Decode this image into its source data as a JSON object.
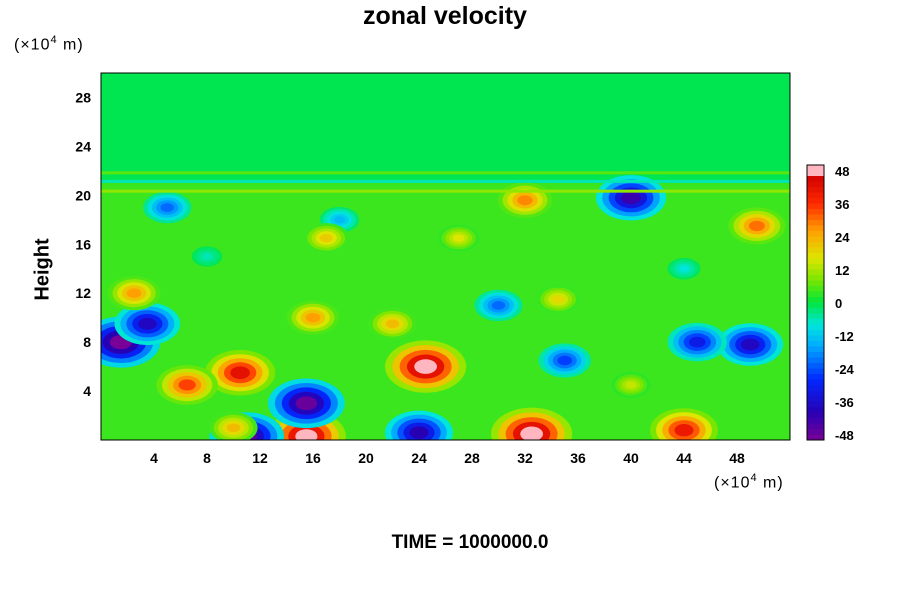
{
  "chart_data": {
    "type": "heatmap",
    "title": "zonal velocity",
    "xlabel": "",
    "ylabel": "Height",
    "x_unit": "(×10⁴ m)",
    "y_unit": "(×10⁴ m)",
    "footer": "TIME = 1000000.0",
    "xlim": [
      0,
      52
    ],
    "ylim": [
      0,
      30
    ],
    "x_ticks": [
      "4",
      "8",
      "12",
      "16",
      "20",
      "24",
      "28",
      "32",
      "36",
      "40",
      "44",
      "48"
    ],
    "y_ticks": [
      "4",
      "8",
      "12",
      "16",
      "20",
      "24",
      "28"
    ],
    "colorbar": {
      "min": -50,
      "max": 50,
      "labels": [
        "48",
        "36",
        "24",
        "12",
        "0",
        "-12",
        "-24",
        "-36",
        "-48"
      ]
    },
    "features": [
      {
        "x": 24.5,
        "y": 6.0,
        "value": 52
      },
      {
        "x": 10.5,
        "y": 5.5,
        "value": 42
      },
      {
        "x": 6.5,
        "y": 4.5,
        "value": 34
      },
      {
        "x": 32.5,
        "y": 0.5,
        "value": 52
      },
      {
        "x": 15.5,
        "y": 0.3,
        "value": 50
      },
      {
        "x": 44.0,
        "y": 0.8,
        "value": 40
      },
      {
        "x": 1.5,
        "y": 8.0,
        "value": -50
      },
      {
        "x": 3.5,
        "y": 9.5,
        "value": -38
      },
      {
        "x": 15.5,
        "y": 3.0,
        "value": -48
      },
      {
        "x": 11.0,
        "y": 0.3,
        "value": -46
      },
      {
        "x": 24.0,
        "y": 0.6,
        "value": -40
      },
      {
        "x": 40.0,
        "y": 19.8,
        "value": -42
      },
      {
        "x": 49.0,
        "y": 7.8,
        "value": -38
      },
      {
        "x": 45.0,
        "y": 8.0,
        "value": -32
      },
      {
        "x": 35.0,
        "y": 6.5,
        "value": -26
      },
      {
        "x": 30.0,
        "y": 11.0,
        "value": -22
      },
      {
        "x": 5.0,
        "y": 19.0,
        "value": -22
      },
      {
        "x": 18.0,
        "y": 18.0,
        "value": -14
      },
      {
        "x": 16.0,
        "y": 10.0,
        "value": 26
      },
      {
        "x": 22.0,
        "y": 9.5,
        "value": 22
      },
      {
        "x": 17.0,
        "y": 16.5,
        "value": 20
      },
      {
        "x": 2.5,
        "y": 12.0,
        "value": 26
      },
      {
        "x": 49.5,
        "y": 17.5,
        "value": 30
      },
      {
        "x": 32.0,
        "y": 19.6,
        "value": 28
      },
      {
        "x": 34.5,
        "y": 11.5,
        "value": 18
      },
      {
        "x": 27.0,
        "y": 16.5,
        "value": 16
      },
      {
        "x": 10.0,
        "y": 1.0,
        "value": 22
      },
      {
        "x": 40.0,
        "y": 4.5,
        "value": 14
      },
      {
        "x": 44.0,
        "y": 14.0,
        "value": -8
      },
      {
        "x": 8.0,
        "y": 15.0,
        "value": -6
      }
    ],
    "upper_layer_value": -1,
    "grid": false,
    "colorbar_placement": "right"
  }
}
